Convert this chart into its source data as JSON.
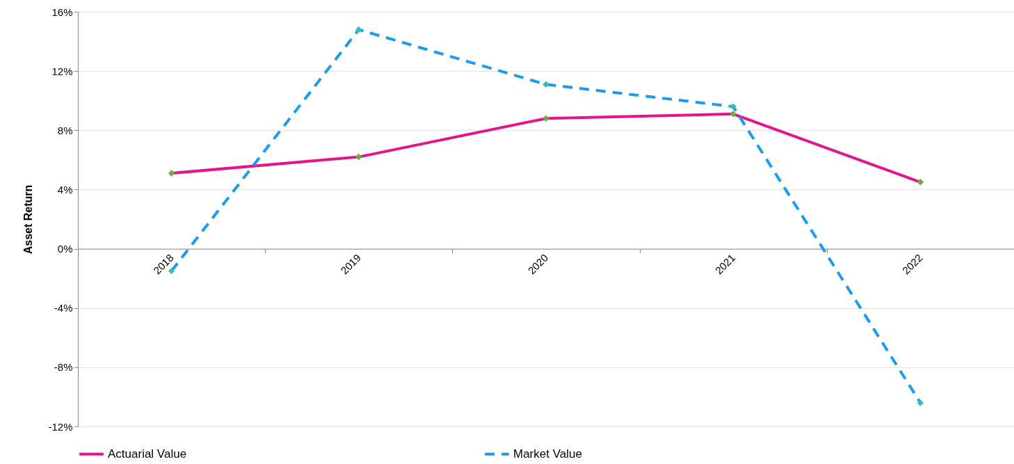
{
  "chart_data": {
    "type": "line",
    "ylabel": "Asset Return",
    "categories": [
      "2018",
      "2019",
      "2020",
      "2021",
      "2022"
    ],
    "series": [
      {
        "name": "Actuarial Value",
        "color": "#e6148c",
        "colors": [
          "#6aae3e",
          "#6aae3e",
          "#6aae3e",
          "#6aae3e",
          "#6aae3e"
        ],
        "line_style": "solid",
        "values": [
          5.1,
          6.2,
          8.8,
          9.1,
          4.5
        ]
      },
      {
        "name": "Market Value",
        "color": "#1a9af0",
        "colors": [
          "#3cbcb4",
          "#3cbcb4",
          "#3cbcb4",
          "#3cbcb4",
          "#3cbcb4"
        ],
        "line_style": "dashed",
        "values": [
          -1.5,
          14.8,
          11.1,
          9.6,
          -10.4
        ]
      }
    ],
    "ylim": [
      -12,
      16
    ],
    "yticks": [
      {
        "value": -12,
        "label": "-12%"
      },
      {
        "value": -8,
        "label": "-8%"
      },
      {
        "value": -4,
        "label": "-4%"
      },
      {
        "value": 0,
        "label": "0%"
      },
      {
        "value": 4,
        "label": "4%"
      },
      {
        "value": 8,
        "label": "8%"
      },
      {
        "value": 12,
        "label": "12%"
      },
      {
        "value": 16,
        "label": "16%"
      }
    ],
    "grid": "y",
    "legend": "bottom",
    "marker": "diamond"
  }
}
